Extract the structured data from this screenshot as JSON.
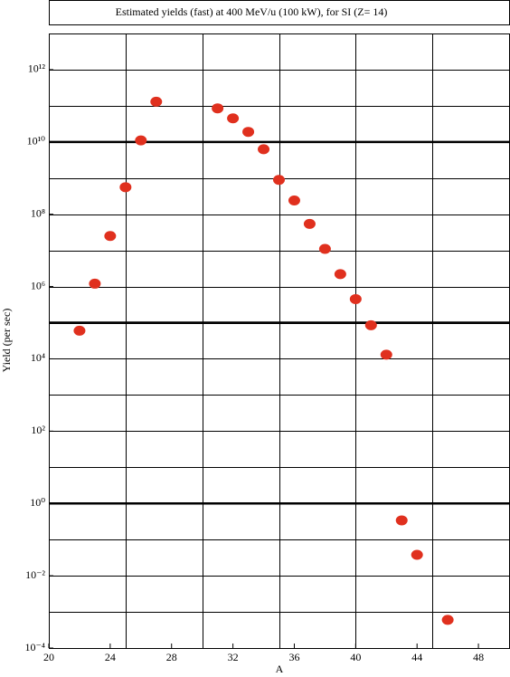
{
  "chart_data": {
    "type": "scatter",
    "title": "Estimated yields (fast) at 400 MeV/u (100 kW), for SI (Z= 14)",
    "xlabel": "A",
    "ylabel": "Yield (per sec)",
    "log_y": true,
    "color": "#e0301e",
    "x": [
      22,
      23,
      24,
      25,
      26,
      27,
      31,
      32,
      33,
      34,
      35,
      36,
      37,
      38,
      39,
      40,
      41,
      42,
      43,
      44,
      46
    ],
    "values": [
      60000.0,
      1200000.0,
      25000000.0,
      560000000.0,
      11000000000.0,
      130000000000.0,
      85000000000.0,
      45000000000.0,
      19000000000.0,
      6300000000.0,
      890000000.0,
      240000000.0,
      54000000.0,
      11000000.0,
      2200000.0,
      450000.0,
      85000.0,
      13000.0,
      0.34,
      0.038,
      0.0006
    ],
    "xlim": [
      20,
      50
    ],
    "ylim": [
      0.0001,
      10000000000000.0
    ],
    "xticks": [
      20,
      24,
      28,
      32,
      36,
      40,
      44,
      48
    ],
    "yticks": [
      {
        "value": 0.0001,
        "label": "10⁻⁴"
      },
      {
        "value": 0.01,
        "label": "10⁻²"
      },
      {
        "value": 1,
        "label": "10⁰"
      },
      {
        "value": 100.0,
        "label": "10²"
      },
      {
        "value": 10000.0,
        "label": "10⁴"
      },
      {
        "value": 1000000.0,
        "label": "10⁶"
      },
      {
        "value": 100000000.0,
        "label": "10⁸"
      },
      {
        "value": 10000000000.0,
        "label": "10¹⁰"
      },
      {
        "value": 1000000000000.0,
        "label": "10¹²"
      }
    ],
    "xgrid": [
      25,
      30,
      35,
      40,
      45
    ],
    "ygrid": [
      0.001,
      0.01,
      0.1,
      1,
      10,
      100,
      1000.0,
      10000.0,
      100000.0,
      1000000.0,
      10000000.0,
      100000000.0,
      1000000000.0,
      10000000000.0,
      100000000000.0,
      1000000000000.0
    ],
    "thick_lines": [
      10000000000.0,
      100000.0,
      1
    ]
  }
}
